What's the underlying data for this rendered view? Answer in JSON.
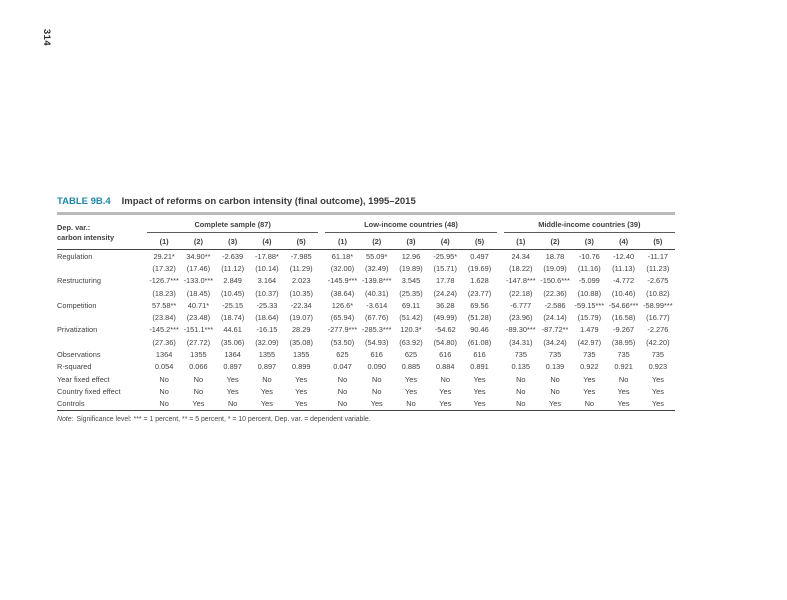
{
  "page": {
    "number": "314"
  },
  "colors": {
    "accent_teal": "#1e87a8",
    "title_rule_gray": "#b9babc",
    "table_rule_dark": "#424244",
    "text": "#414143"
  },
  "table": {
    "label": "TABLE 9B.4",
    "title": "Impact of reforms on carbon intensity (final outcome), 1995–2015",
    "dep_var": [
      "Dep. var.:",
      "carbon intensity"
    ],
    "groups": [
      {
        "label": "Complete sample (87)"
      },
      {
        "label": "Low-income countries (48)"
      },
      {
        "label": "Middle-income countries (39)"
      }
    ],
    "column_numbers": [
      "(1)",
      "(2)",
      "(3)",
      "(4)",
      "(5)"
    ],
    "rows": [
      {
        "label": "Regulation",
        "values": [
          "29.21*",
          "34.90**",
          "-2.639",
          "-17.88*",
          "-7.985",
          "61.18*",
          "55.09*",
          "12.96",
          "-25.95*",
          "0.497",
          "24.34",
          "18.78",
          "-10.76",
          "-12.40",
          "-11.17"
        ]
      },
      {
        "label": "",
        "values": [
          "(17.32)",
          "(17.46)",
          "(11.12)",
          "(10.14)",
          "(11.29)",
          "(32.00)",
          "(32.49)",
          "(19.89)",
          "(15.71)",
          "(19.69)",
          "(18.22)",
          "(19.09)",
          "(11.16)",
          "(11.13)",
          "(11.23)"
        ]
      },
      {
        "label": "Restructuring",
        "values": [
          "-126.7***",
          "-133.0***",
          "2.849",
          "3.164",
          "2.023",
          "-145.9***",
          "-139.8***",
          "3.545",
          "17.78",
          "1.628",
          "-147.8***",
          "-150.6***",
          "-5.099",
          "-4.772",
          "-2.675"
        ]
      },
      {
        "label": "",
        "values": [
          "(18.23)",
          "(18.45)",
          "(10.45)",
          "(10.37)",
          "(10.35)",
          "(38.64)",
          "(40.31)",
          "(25.35)",
          "(24.24)",
          "(23.77)",
          "(22.18)",
          "(22.36)",
          "(10.88)",
          "(10.46)",
          "(10.82)"
        ]
      },
      {
        "label": "Competition",
        "values": [
          "57.58**",
          "40.71*",
          "-25.15",
          "-25.33",
          "-22.34",
          "126.6*",
          "-3.614",
          "69.11",
          "36.28",
          "69.56",
          "-6.777",
          "-2.586",
          "-59.15***",
          "-54.66***",
          "-58.99***"
        ]
      },
      {
        "label": "",
        "values": [
          "(23.84)",
          "(23.48)",
          "(18.74)",
          "(18.64)",
          "(19.07)",
          "(65.94)",
          "(67.76)",
          "(51.42)",
          "(49.99)",
          "(51.28)",
          "(23.96)",
          "(24.14)",
          "(15.79)",
          "(16.58)",
          "(16.77)"
        ]
      },
      {
        "label": "Privatization",
        "values": [
          "-145.2***",
          "-151.1***",
          "44.61",
          "-16.15",
          "28.29",
          "-277.9***",
          "-285.3***",
          "120.3*",
          "-54.62",
          "90.46",
          "-89.30***",
          "-87.72**",
          "1.479",
          "-9.267",
          "-2.276"
        ]
      },
      {
        "label": "",
        "values": [
          "(27.36)",
          "(27.72)",
          "(35.06)",
          "(32.09)",
          "(35.08)",
          "(53.50)",
          "(54.93)",
          "(63.92)",
          "(54.80)",
          "(61.08)",
          "(34.31)",
          "(34.24)",
          "(42.97)",
          "(38.95)",
          "(42.20)"
        ]
      },
      {
        "label": "Observations",
        "values": [
          "1364",
          "1355",
          "1364",
          "1355",
          "1355",
          "625",
          "616",
          "625",
          "616",
          "616",
          "735",
          "735",
          "735",
          "735",
          "735"
        ]
      },
      {
        "label": "R-squared",
        "values": [
          "0.054",
          "0.066",
          "0.897",
          "0.897",
          "0.899",
          "0.047",
          "0.090",
          "0.885",
          "0.884",
          "0.891",
          "0.135",
          "0.139",
          "0.922",
          "0.921",
          "0.923"
        ]
      },
      {
        "label": "Year fixed effect",
        "values": [
          "No",
          "No",
          "Yes",
          "No",
          "Yes",
          "No",
          "No",
          "Yes",
          "No",
          "Yes",
          "No",
          "No",
          "Yes",
          "No",
          "Yes"
        ]
      },
      {
        "label": "Country fixed effect",
        "values": [
          "No",
          "No",
          "Yes",
          "Yes",
          "Yes",
          "No",
          "No",
          "Yes",
          "Yes",
          "Yes",
          "No",
          "No",
          "Yes",
          "Yes",
          "Yes"
        ]
      },
      {
        "label": "Controls",
        "values": [
          "No",
          "Yes",
          "No",
          "Yes",
          "Yes",
          "No",
          "Yes",
          "No",
          "Yes",
          "Yes",
          "No",
          "Yes",
          "No",
          "Yes",
          "Yes"
        ]
      }
    ],
    "note_prefix": "Note:",
    "note_text": "Significance level: *** = 1 percent, ** = 5 percent, * = 10 percent, Dep. var. = dependent variable."
  }
}
